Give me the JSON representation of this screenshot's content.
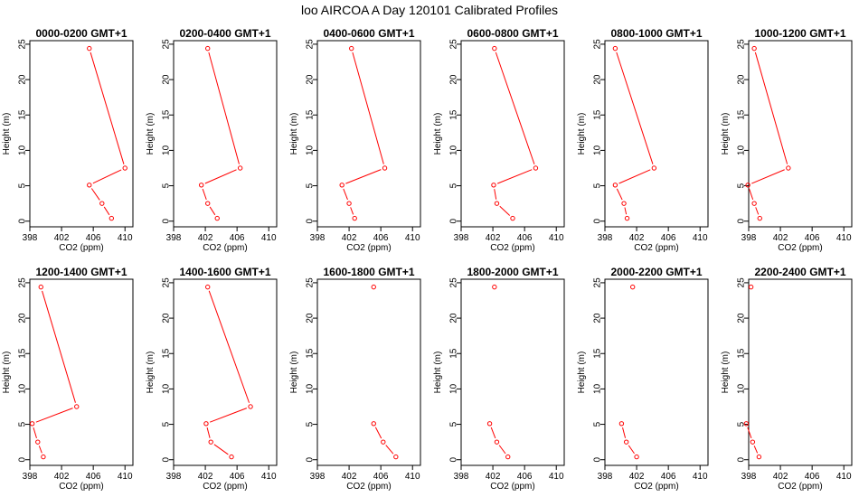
{
  "figure_title": "loo AIRCOA A  Day 120101  Calibrated Profiles",
  "colors": {
    "series": "#ff0000",
    "axis": "#000000",
    "background": "#ffffff"
  },
  "chart_data": [
    {
      "type": "line",
      "title": "0000-0200 GMT+1",
      "xlabel": "CO2 (ppm)",
      "ylabel": "Height (m)",
      "xlim": [
        398,
        411
      ],
      "ylim": [
        -0.8,
        25.5
      ],
      "xticks": [
        398,
        402,
        406,
        410
      ],
      "yticks": [
        0,
        5,
        10,
        15,
        20,
        25
      ],
      "x": [
        405.5,
        410.0,
        405.5,
        407.1,
        408.3
      ],
      "y": [
        24.4,
        7.5,
        5.1,
        2.5,
        0.4
      ]
    },
    {
      "type": "line",
      "title": "0200-0400 GMT+1",
      "xlabel": "CO2 (ppm)",
      "ylabel": "Height (m)",
      "xlim": [
        398,
        411
      ],
      "ylim": [
        -0.8,
        25.5
      ],
      "xticks": [
        398,
        402,
        406,
        410
      ],
      "yticks": [
        0,
        5,
        10,
        15,
        20,
        25
      ],
      "x": [
        402.3,
        406.4,
        401.5,
        402.3,
        403.5
      ],
      "y": [
        24.4,
        7.5,
        5.1,
        2.5,
        0.4
      ]
    },
    {
      "type": "line",
      "title": "0400-0600 GMT+1",
      "xlabel": "CO2 (ppm)",
      "ylabel": "Height (m)",
      "xlim": [
        398,
        411
      ],
      "ylim": [
        -0.8,
        25.5
      ],
      "xticks": [
        398,
        402,
        406,
        410
      ],
      "yticks": [
        0,
        5,
        10,
        15,
        20,
        25
      ],
      "x": [
        402.3,
        406.5,
        401.1,
        402.0,
        402.7
      ],
      "y": [
        24.4,
        7.5,
        5.1,
        2.5,
        0.4
      ]
    },
    {
      "type": "line",
      "title": "0600-0800 GMT+1",
      "xlabel": "CO2 (ppm)",
      "ylabel": "Height (m)",
      "xlim": [
        398,
        411
      ],
      "ylim": [
        -0.8,
        25.5
      ],
      "xticks": [
        398,
        402,
        406,
        410
      ],
      "yticks": [
        0,
        5,
        10,
        15,
        20,
        25
      ],
      "x": [
        402.2,
        407.4,
        402.1,
        402.5,
        404.5
      ],
      "y": [
        24.4,
        7.5,
        5.1,
        2.5,
        0.4
      ]
    },
    {
      "type": "line",
      "title": "0800-1000 GMT+1",
      "xlabel": "CO2 (ppm)",
      "ylabel": "Height (m)",
      "xlim": [
        398,
        411
      ],
      "ylim": [
        -0.8,
        25.5
      ],
      "xticks": [
        398,
        402,
        406,
        410
      ],
      "yticks": [
        0,
        5,
        10,
        15,
        20,
        25
      ],
      "x": [
        399.3,
        404.2,
        399.3,
        400.4,
        400.8
      ],
      "y": [
        24.4,
        7.5,
        5.1,
        2.5,
        0.4
      ]
    },
    {
      "type": "line",
      "title": "1000-1200 GMT+1",
      "xlabel": "CO2 (ppm)",
      "ylabel": "Height (m)",
      "xlim": [
        398,
        411
      ],
      "ylim": [
        -0.8,
        25.5
      ],
      "xticks": [
        398,
        402,
        406,
        410
      ],
      "yticks": [
        0,
        5,
        10,
        15,
        20,
        25
      ],
      "x": [
        398.7,
        403.0,
        397.9,
        398.7,
        399.4
      ],
      "y": [
        24.4,
        7.5,
        5.1,
        2.5,
        0.4
      ]
    },
    {
      "type": "line",
      "title": "1200-1400 GMT+1",
      "xlabel": "CO2 (ppm)",
      "ylabel": "Height (m)",
      "xlim": [
        398,
        411
      ],
      "ylim": [
        -0.8,
        25.5
      ],
      "xticks": [
        398,
        402,
        406,
        410
      ],
      "yticks": [
        0,
        5,
        10,
        15,
        20,
        25
      ],
      "x": [
        399.4,
        403.9,
        398.3,
        399.0,
        399.7
      ],
      "y": [
        24.4,
        7.5,
        5.1,
        2.5,
        0.4
      ]
    },
    {
      "type": "line",
      "title": "1400-1600 GMT+1",
      "xlabel": "CO2 (ppm)",
      "ylabel": "Height (m)",
      "xlim": [
        398,
        411
      ],
      "ylim": [
        -0.8,
        25.5
      ],
      "xticks": [
        398,
        402,
        406,
        410
      ],
      "yticks": [
        0,
        5,
        10,
        15,
        20,
        25
      ],
      "x": [
        402.3,
        407.7,
        402.1,
        402.7,
        405.3
      ],
      "y": [
        24.4,
        7.5,
        5.1,
        2.5,
        0.4
      ]
    },
    {
      "type": "line",
      "title": "1600-1800 GMT+1",
      "xlabel": "CO2 (ppm)",
      "ylabel": "Height (m)",
      "xlim": [
        398,
        411
      ],
      "ylim": [
        -0.8,
        25.5
      ],
      "xticks": [
        398,
        402,
        406,
        410
      ],
      "yticks": [
        0,
        5,
        10,
        15,
        20,
        25
      ],
      "x": [
        405.1,
        405.1,
        406.3,
        407.9
      ],
      "y": [
        24.4,
        5.1,
        2.5,
        0.4
      ],
      "segments": [
        [
          1,
          2
        ],
        [
          2,
          3
        ]
      ]
    },
    {
      "type": "line",
      "title": "1800-2000 GMT+1",
      "xlabel": "CO2 (ppm)",
      "ylabel": "Height (m)",
      "xlim": [
        398,
        411
      ],
      "ylim": [
        -0.8,
        25.5
      ],
      "xticks": [
        398,
        402,
        406,
        410
      ],
      "yticks": [
        0,
        5,
        10,
        15,
        20,
        25
      ],
      "x": [
        402.2,
        401.6,
        402.5,
        403.9
      ],
      "y": [
        24.4,
        5.1,
        2.5,
        0.4
      ],
      "segments": [
        [
          1,
          2
        ],
        [
          2,
          3
        ]
      ]
    },
    {
      "type": "line",
      "title": "2000-2200 GMT+1",
      "xlabel": "CO2 (ppm)",
      "ylabel": "Height (m)",
      "xlim": [
        398,
        411
      ],
      "ylim": [
        -0.8,
        25.5
      ],
      "xticks": [
        398,
        402,
        406,
        410
      ],
      "yticks": [
        0,
        5,
        10,
        15,
        20,
        25
      ],
      "x": [
        401.5,
        400.1,
        400.7,
        402.0
      ],
      "y": [
        24.4,
        5.1,
        2.5,
        0.4
      ],
      "segments": [
        [
          1,
          2
        ],
        [
          2,
          3
        ]
      ]
    },
    {
      "type": "line",
      "title": "2200-2400 GMT+1",
      "xlabel": "CO2 (ppm)",
      "ylabel": "Height (m)",
      "xlim": [
        398,
        411
      ],
      "ylim": [
        -0.8,
        25.5
      ],
      "xticks": [
        398,
        402,
        406,
        410
      ],
      "yticks": [
        0,
        5,
        10,
        15,
        20,
        25
      ],
      "x": [
        398.3,
        397.7,
        398.5,
        399.3
      ],
      "y": [
        24.4,
        5.1,
        2.5,
        0.4
      ],
      "segments": [
        [
          1,
          2
        ],
        [
          2,
          3
        ]
      ]
    }
  ]
}
